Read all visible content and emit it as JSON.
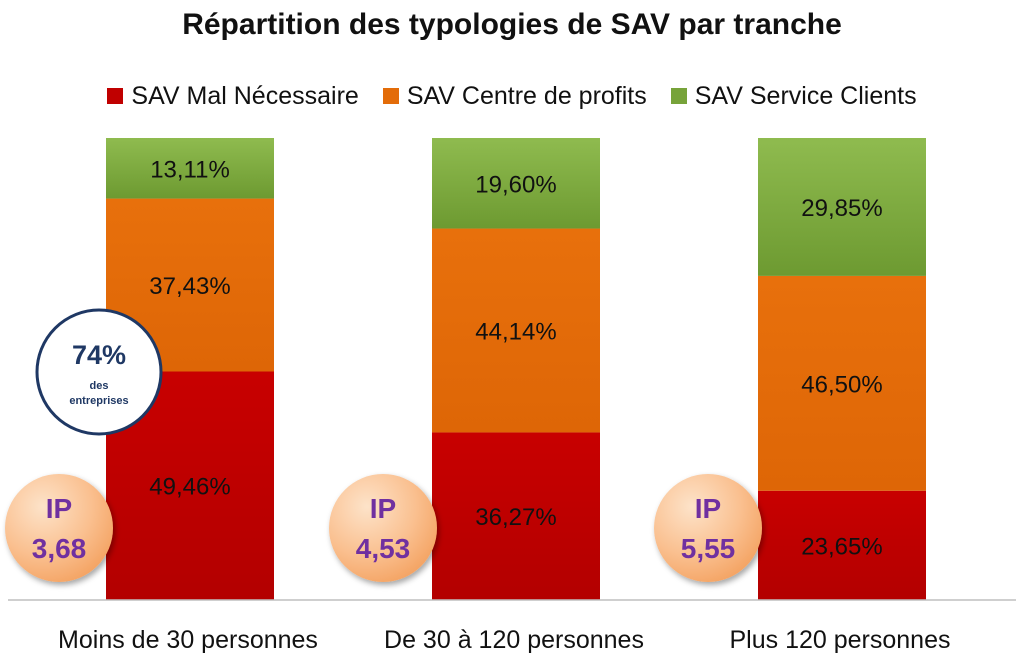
{
  "chart_data": {
    "type": "bar",
    "stacked": true,
    "normalized_percent": true,
    "title": "Répartition des typologies de SAV par tranche",
    "categories": [
      "Moins de 30 personnes",
      "De 30 à 120 personnes",
      "Plus 120 personnes"
    ],
    "series": [
      {
        "name": "SAV Mal Nécessaire",
        "color": "#c00000",
        "values": [
          49.46,
          36.27,
          23.65
        ],
        "labels": [
          "49,46%",
          "36,27%",
          "23,65%"
        ]
      },
      {
        "name": "SAV Centre de profits",
        "color": "#e36c09",
        "values": [
          37.43,
          44.14,
          46.5
        ],
        "labels": [
          "37,43%",
          "44,14%",
          "46,50%"
        ]
      },
      {
        "name": "SAV Service Clients",
        "color": "#77a33a",
        "values": [
          13.11,
          19.6,
          29.85
        ],
        "labels": [
          "13,11%",
          "19,60%",
          "29,85%"
        ]
      }
    ],
    "ylim": [
      0,
      100
    ],
    "grid": false,
    "legend_position": "top",
    "annotations": {
      "ip_badges": [
        {
          "label": "IP",
          "value": "3,68"
        },
        {
          "label": "IP",
          "value": "4,53"
        },
        {
          "label": "IP",
          "value": "5,55"
        }
      ],
      "callout": {
        "value": "74%",
        "line1": "des",
        "line2": "entreprises"
      }
    }
  },
  "colors": {
    "ip_text": "#7030a0",
    "ip_fill": "#fac090",
    "callout_border": "#1f3864",
    "callout_text": "#1f3864"
  }
}
